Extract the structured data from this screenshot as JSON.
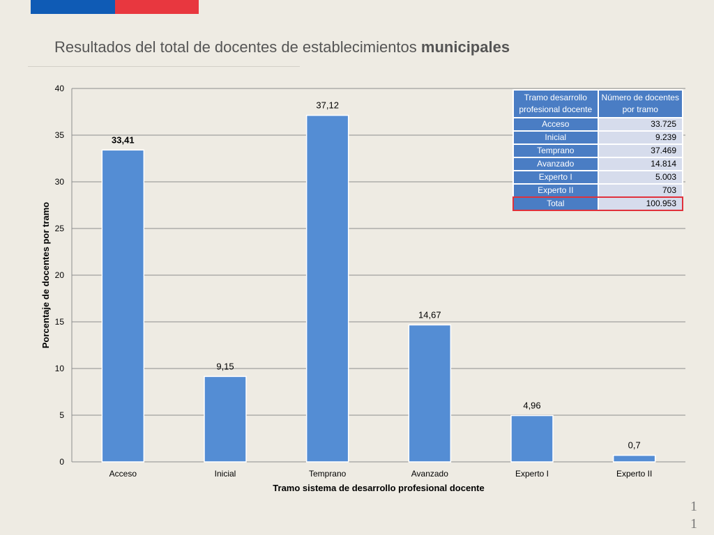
{
  "slide": {
    "title_regular": "Resultados del total de docentes de establecimientos",
    "title_bold": "municipales",
    "page_number_line1": "1",
    "page_number_line2": "1"
  },
  "colors": {
    "bar": "#548dd4",
    "flag_blue": "#0f5bb5",
    "flag_red": "#e8373f",
    "highlight": "#e0313b"
  },
  "chart_data": {
    "type": "bar",
    "categories": [
      "Acceso",
      "Inicial",
      "Temprano",
      "Avanzado",
      "Experto I",
      "Experto II"
    ],
    "values": [
      33.41,
      9.15,
      37.12,
      14.67,
      4.96,
      0.7
    ],
    "value_labels": [
      "33,41",
      "9,15",
      "37,12",
      "14,67",
      "4,96",
      "0,7"
    ],
    "title": "",
    "xlabel": "Tramo sistema de desarrollo profesional docente",
    "ylabel": "Porcentaje de docentes por tramo",
    "ylim": [
      0,
      40
    ],
    "yticks": [
      0,
      5,
      10,
      15,
      20,
      25,
      30,
      35,
      40
    ],
    "grid": true,
    "legend": "none"
  },
  "table": {
    "header_col1": "Tramo desarrollo profesional docente",
    "header_col2": "Número de docentes por tramo",
    "rows": [
      {
        "tramo": "Acceso",
        "docentes": "33.725"
      },
      {
        "tramo": "Inicial",
        "docentes": "9.239"
      },
      {
        "tramo": "Temprano",
        "docentes": "37.469"
      },
      {
        "tramo": "Avanzado",
        "docentes": "14.814"
      },
      {
        "tramo": "Experto I",
        "docentes": "5.003"
      },
      {
        "tramo": "Experto II",
        "docentes": "703"
      },
      {
        "tramo": "Total",
        "docentes": "100.953"
      }
    ]
  }
}
